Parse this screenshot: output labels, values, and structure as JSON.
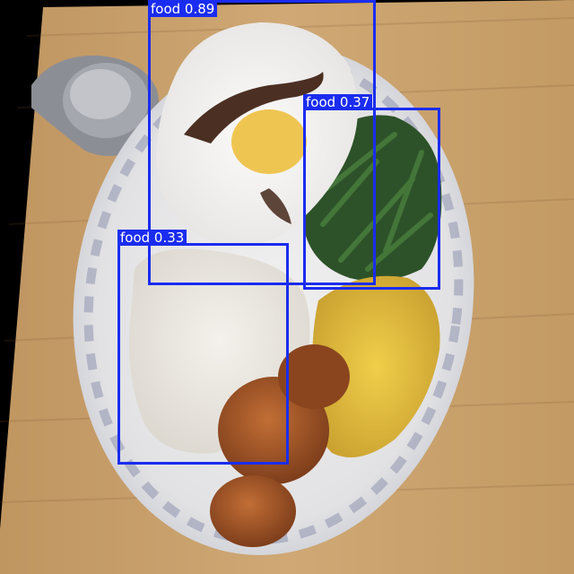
{
  "image": {
    "subject": "overhead photo of a plate of food with object-detection boxes",
    "colors": {
      "box": "#1a2cf0",
      "label_text": "#ffffff",
      "table": "#c8a06a",
      "plate": "#e7e6e6",
      "rice": "#eeeae3",
      "corn": "#e6c23a",
      "greens": "#2f5a2c",
      "croquette": "#a85a2a",
      "sauce": "#3a1a0c"
    }
  },
  "detections": [
    {
      "label": "food 0.89",
      "class": "food",
      "confidence": 0.89
    },
    {
      "label": "food 0.37",
      "class": "food",
      "confidence": 0.37
    },
    {
      "label": "food 0.33",
      "class": "food",
      "confidence": 0.33
    }
  ]
}
